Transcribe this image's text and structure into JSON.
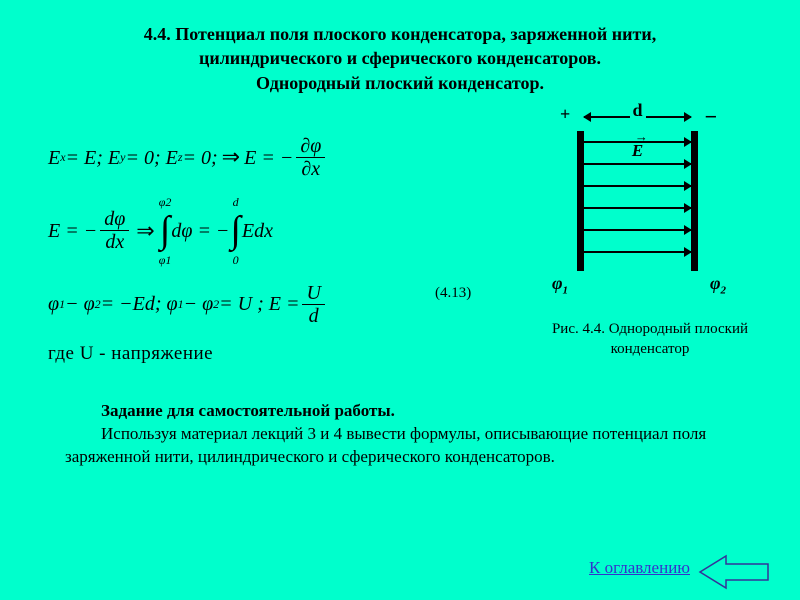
{
  "title": {
    "line1": "4.4. Потенциал поля плоского конденсатора, заряженной нити,",
    "line2": "цилиндрического и сферического конденсаторов.",
    "line3": "Однородный плоский конденсатор."
  },
  "formulas": {
    "row1_a": "E",
    "row1_sub_x": "x",
    "row1_eq": " = E; E",
    "row1_sub_y": "y",
    "row1_mid": " = 0; E",
    "row1_sub_z": "z",
    "row1_after": " = 0; ",
    "row1_E": "E = −",
    "row1_partial_num": "∂φ",
    "row1_partial_den": "∂x",
    "row2_E": "E = −",
    "row2_frac_num": "dφ",
    "row2_frac_den": "dx",
    "row2_arrow": "⇒",
    "row2_int1_up": "φ2",
    "row2_int1_low": "φ1",
    "row2_int1_body": "dφ = −",
    "row2_int2_up": "d",
    "row2_int2_low": "0",
    "row2_int2_body": "Edx",
    "row3_a": "φ",
    "row3_sub1": "1",
    "row3_b": " − φ",
    "row3_sub2": "2",
    "row3_c": " = −Ed; φ",
    "row3_d": " − φ",
    "row3_e": " = U ;  E = ",
    "row3_frac_num": "U",
    "row3_frac_den": "d",
    "where": "где U - напряжение"
  },
  "eq_tag": "(4.13)",
  "figure": {
    "plus": "+",
    "minus": "−",
    "d_label": "d",
    "E_label": "E",
    "E_arrow_over": "→",
    "phi1": "φ",
    "phi1_sub": "1",
    "phi2": "φ",
    "phi2_sub": "2",
    "caption_lead": "Рис. 4.4. ",
    "caption_rest": "Однородный плоский конденсатор",
    "field_lines_y": [
      33,
      55,
      77,
      99,
      121,
      143
    ],
    "colors": {
      "line": "#000000"
    }
  },
  "task": {
    "lead": "Задание для самостоятельной работы.",
    "body": "Используя материал лекций 3 и 4 вывести формулы, описывающие потенциал поля заряженной нити, цилиндрического и сферического конденсаторов."
  },
  "backlink": "К оглавлению",
  "colors": {
    "background": "#00ffcc",
    "text": "#000000",
    "link": "#3333cc",
    "nav_stroke": "#333399"
  }
}
